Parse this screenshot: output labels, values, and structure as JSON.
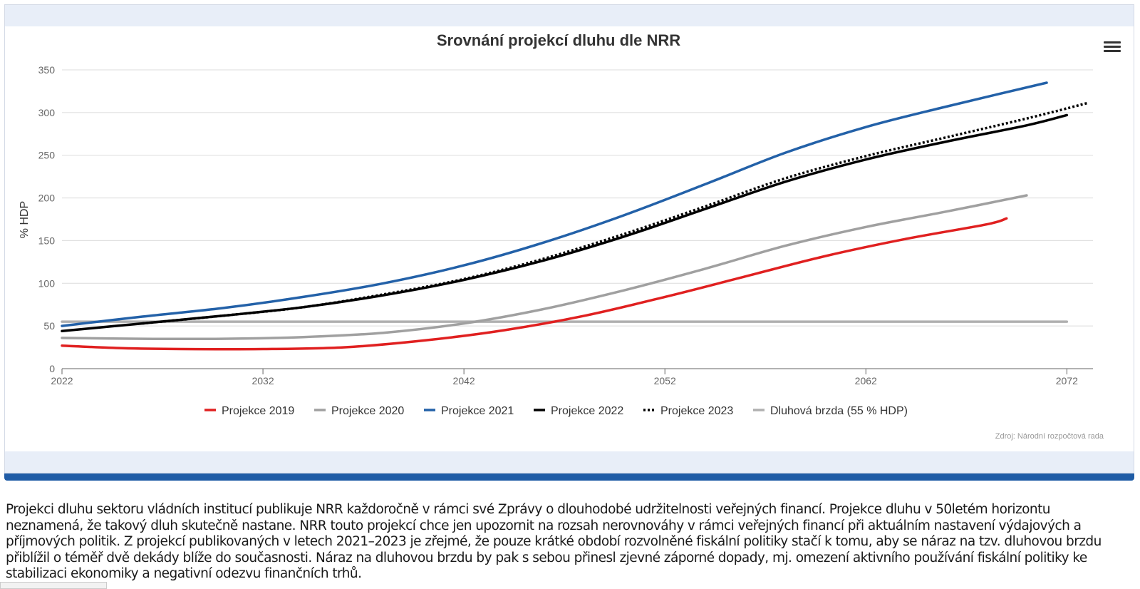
{
  "chart_data": {
    "type": "line",
    "title": "Srovnání projekcí dluhu dle NRR",
    "xlabel": "",
    "ylabel": "% HDP",
    "xlim": [
      2022,
      2073.3
    ],
    "ylim": [
      0,
      350
    ],
    "xticks": [
      2022,
      2032,
      2042,
      2052,
      2062,
      2072
    ],
    "yticks": [
      0,
      50,
      100,
      150,
      200,
      250,
      300,
      350
    ],
    "grid": "horizontal",
    "legend_position": "bottom",
    "series": [
      {
        "name": "Projekce 2019",
        "color": "#e02020",
        "style": "solid",
        "points": [
          [
            2022,
            27
          ],
          [
            2025,
            24
          ],
          [
            2028,
            23
          ],
          [
            2032,
            23
          ],
          [
            2036,
            25
          ],
          [
            2040,
            33
          ],
          [
            2044,
            45
          ],
          [
            2048,
            62
          ],
          [
            2052,
            84
          ],
          [
            2056,
            108
          ],
          [
            2060,
            132
          ],
          [
            2064,
            152
          ],
          [
            2068,
            169
          ],
          [
            2069,
            176
          ]
        ]
      },
      {
        "name": "Projekce 2020",
        "color": "#a0a0a0",
        "style": "solid",
        "points": [
          [
            2022,
            36
          ],
          [
            2026,
            35
          ],
          [
            2030,
            35
          ],
          [
            2034,
            37
          ],
          [
            2038,
            42
          ],
          [
            2042,
            53
          ],
          [
            2046,
            70
          ],
          [
            2050,
            92
          ],
          [
            2054,
            117
          ],
          [
            2058,
            144
          ],
          [
            2062,
            166
          ],
          [
            2066,
            184
          ],
          [
            2070,
            203
          ]
        ]
      },
      {
        "name": "Projekce 2021",
        "color": "#2361a8",
        "style": "solid",
        "points": [
          [
            2022,
            50
          ],
          [
            2026,
            61
          ],
          [
            2030,
            71
          ],
          [
            2034,
            84
          ],
          [
            2038,
            100
          ],
          [
            2042,
            121
          ],
          [
            2046,
            148
          ],
          [
            2050,
            180
          ],
          [
            2054,
            216
          ],
          [
            2058,
            253
          ],
          [
            2062,
            283
          ],
          [
            2066,
            307
          ],
          [
            2071,
            335
          ]
        ]
      },
      {
        "name": "Projekce 2022",
        "color": "#000000",
        "style": "solid",
        "points": [
          [
            2022,
            44
          ],
          [
            2026,
            53
          ],
          [
            2030,
            62
          ],
          [
            2034,
            72
          ],
          [
            2038,
            86
          ],
          [
            2042,
            104
          ],
          [
            2046,
            127
          ],
          [
            2050,
            155
          ],
          [
            2054,
            187
          ],
          [
            2058,
            219
          ],
          [
            2062,
            245
          ],
          [
            2066,
            266
          ],
          [
            2070,
            285
          ],
          [
            2072,
            297
          ]
        ]
      },
      {
        "name": "Projekce 2023",
        "color": "#000000",
        "style": "dotted",
        "points": [
          [
            2026,
            53
          ],
          [
            2030,
            62
          ],
          [
            2034,
            72
          ],
          [
            2038,
            87
          ],
          [
            2042,
            105
          ],
          [
            2046,
            129
          ],
          [
            2050,
            158
          ],
          [
            2054,
            190
          ],
          [
            2058,
            223
          ],
          [
            2062,
            249
          ],
          [
            2066,
            271
          ],
          [
            2070,
            293
          ],
          [
            2073,
            311
          ]
        ]
      },
      {
        "name": "Dluhová brzda (55 % HDP)",
        "color": "#b0b0b0",
        "style": "solid",
        "points": [
          [
            2022,
            55
          ],
          [
            2072,
            55
          ]
        ]
      }
    ],
    "source": "Zdroj: Národní rozpočtová rada"
  },
  "ui": {
    "menu_icon": "hamburger-menu-icon"
  },
  "text": {
    "description": "Projekci dluhu sektoru vládních institucí publikuje NRR každoročně v rámci své Zprávy o dlouhodobé udržitelnosti veřejných financí. Projekce dluhu v 50letém horizontu neznamená, že takový dluh skutečně nastane. NRR touto projekcí chce jen upozornit na rozsah nerovnováhy v rámci veřejných financí při aktuálním nastavení výdajových a příjmových politik. Z projekcí publikovaných v letech 2021–2023 je zřejmé, že pouze krátké období rozvolněné fiskální politiky stačí k tomu, aby se náraz na tzv. dluhovou brzdu přiblížil o téměř dvě dekády blíže do současnosti. Náraz na dluhovou brzdu by pak s sebou přinesl zjevné záporné dopady, mj. omezení aktivního používání fiskální politiky ke stabilizaci ekonomiky a negativní odezvu finančních trhů."
  }
}
